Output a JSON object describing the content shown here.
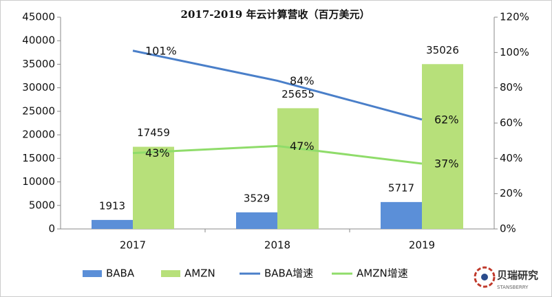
{
  "chart_data": {
    "type": "bar",
    "title": "2017-2019 年云计算营收（百万美元）",
    "categories": [
      "2017",
      "2018",
      "2019"
    ],
    "series": [
      {
        "name": "BABA",
        "type": "bar",
        "color": "#5b8fd8",
        "values": [
          1913,
          3529,
          5717
        ]
      },
      {
        "name": "AMZN",
        "type": "bar",
        "color": "#b7e07a",
        "values": [
          17459,
          25655,
          35026
        ]
      },
      {
        "name": "BABA增速",
        "type": "line",
        "axis": "y2",
        "color": "#4a7fc9",
        "values": [
          101,
          84,
          62
        ],
        "value_labels": [
          "101%",
          "84%",
          "62%"
        ]
      },
      {
        "name": "AMZN增速",
        "type": "line",
        "axis": "y2",
        "color": "#8fdc6a",
        "values": [
          43,
          47,
          37
        ],
        "value_labels": [
          "43%",
          "47%",
          "37%"
        ]
      }
    ],
    "ylim": [
      0,
      45000
    ],
    "yticks": [
      0,
      5000,
      10000,
      15000,
      20000,
      25000,
      30000,
      35000,
      40000,
      45000
    ],
    "y2lim": [
      0,
      120
    ],
    "y2ticks": [
      {
        "value": 0,
        "label": "0%"
      },
      {
        "value": 20,
        "label": "20%"
      },
      {
        "value": 40,
        "label": "40%"
      },
      {
        "value": 60,
        "label": "60%"
      },
      {
        "value": 80,
        "label": "80%"
      },
      {
        "value": 100,
        "label": "100%"
      },
      {
        "value": 120,
        "label": "120%"
      }
    ],
    "grid": false,
    "legend": "bottom",
    "watermark": {
      "text": "贝瑞研究",
      "subtext": "STANSBERRY"
    }
  }
}
